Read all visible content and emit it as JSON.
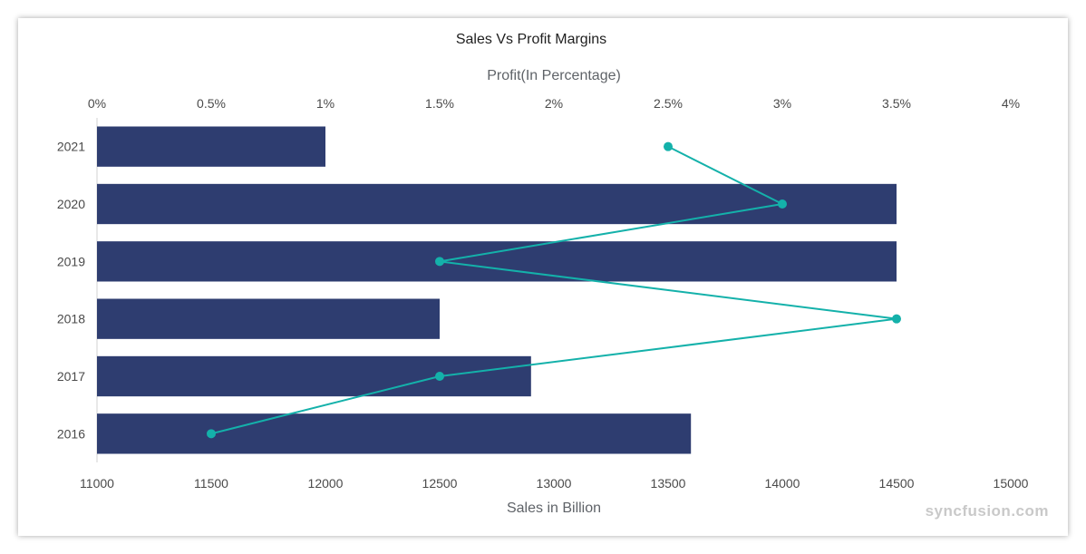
{
  "chart_data": {
    "type": "bar",
    "title": "Sales Vs Profit Margins",
    "categories": [
      "2021",
      "2020",
      "2019",
      "2018",
      "2017",
      "2016"
    ],
    "series": [
      {
        "type": "bar",
        "axis": "bottom",
        "values": [
          12000,
          14500,
          14500,
          12500,
          12900,
          13600
        ]
      },
      {
        "type": "line",
        "axis": "top",
        "values": [
          2.5,
          3,
          1.5,
          3.5,
          1.5,
          0.5
        ]
      }
    ],
    "xlabel": "Sales in Billion",
    "xlim": [
      11000,
      15000
    ],
    "x_ticks": [
      "11000",
      "11500",
      "12000",
      "12500",
      "13000",
      "13500",
      "14000",
      "14500",
      "15000"
    ],
    "x2label": "Profit(In Percentage)",
    "x2lim": [
      0,
      4
    ],
    "x2_ticks": [
      "0%",
      "0.5%",
      "1%",
      "1.5%",
      "2%",
      "2.5%",
      "3%",
      "3.5%",
      "4%"
    ],
    "grid": false,
    "colors": {
      "bar": "#2e3d70",
      "line": "#14b1aa"
    }
  },
  "watermark": "syncfusion.com"
}
